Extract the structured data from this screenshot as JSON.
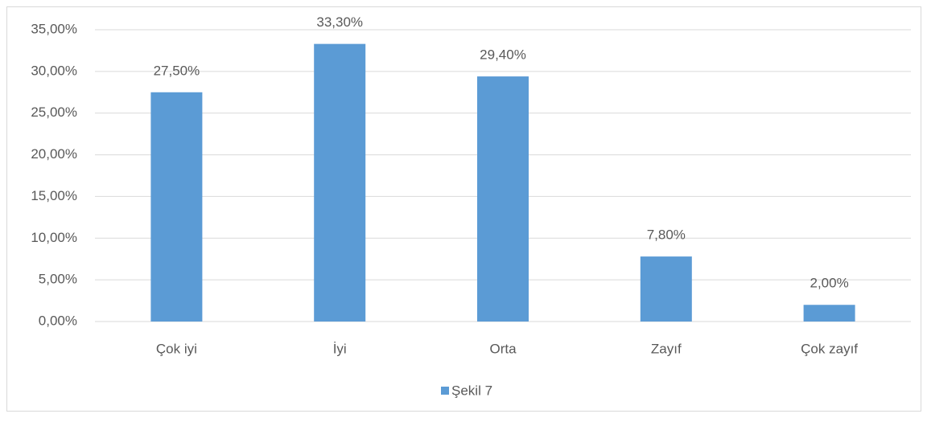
{
  "chart_data": {
    "type": "bar",
    "categories": [
      "Çok iyi",
      "İyi",
      "Orta",
      "Zayıf",
      "Çok zayıf"
    ],
    "series": [
      {
        "name": "Şekil 7",
        "color": "#5b9bd5",
        "values": [
          27.5,
          33.3,
          29.4,
          7.8,
          2.0
        ],
        "value_labels": [
          "27,50%",
          "33,30%",
          "29,40%",
          "7,80%",
          "2,00%"
        ]
      }
    ],
    "ylim": [
      0,
      35
    ],
    "yticks": [
      {
        "value": 0,
        "label": "0,00%"
      },
      {
        "value": 5,
        "label": "5,00%"
      },
      {
        "value": 10,
        "label": "10,00%"
      },
      {
        "value": 15,
        "label": "15,00%"
      },
      {
        "value": 20,
        "label": "20,00%"
      },
      {
        "value": 25,
        "label": "25,00%"
      },
      {
        "value": 30,
        "label": "30,00%"
      },
      {
        "value": 35,
        "label": "35,00%"
      }
    ],
    "grid": true,
    "legend": "bottom"
  }
}
